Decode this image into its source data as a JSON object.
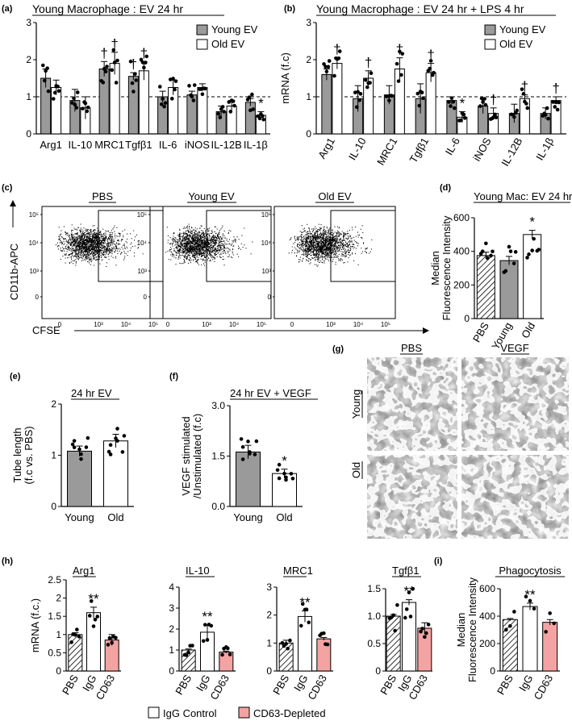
{
  "colors": {
    "young": "#9a9a9a",
    "old": "#ffffff",
    "cd63": "#f4a3a3",
    "igg": "#ffffff",
    "stroke": "#000000",
    "blot_bg": "#2b2b2b"
  },
  "panel_a": {
    "letter": "(a)",
    "title": "Young Macrophage : EV 24 hr",
    "legend": [
      "Young EV",
      "Old EV"
    ]
  },
  "panel_b": {
    "letter": "(b)",
    "title": "Young Macrophage : EV 24 hr + LPS 4 hr",
    "ylabel": "mRNA  (f.c)",
    "legend": [
      "Young EV",
      "Old EV"
    ]
  },
  "panel_c": {
    "letter": "(c)",
    "titles": [
      "PBS",
      "Young EV",
      "Old EV"
    ],
    "ylabel": "CD11b-APC",
    "xlabel": "CFSE",
    "yticks": [
      "10⁵",
      "10⁴",
      "10³",
      "0"
    ],
    "xticks": [
      "0",
      "10³",
      "10⁴",
      "10⁵"
    ]
  },
  "panel_d": {
    "letter": "(d)",
    "title": "Young Mac: EV 24 hr",
    "ylabel": "Median Fluorescence Intensity"
  },
  "panel_e": {
    "letter": "(e)",
    "title": "24 hr EV",
    "ylabel": "Tube length (f.c vs. PBS)"
  },
  "panel_f": {
    "letter": "(f)",
    "title": "24 hr EV + VEGF",
    "ylabel": "VEGF stimulated /Unstimulated (f.c)"
  },
  "panel_g": {
    "letter": "(g)",
    "col_labels": [
      "PBS",
      "VEGF"
    ],
    "row_labels": [
      "Young",
      "Old"
    ]
  },
  "panel_h": {
    "letter": "(h)",
    "ylabel": "mRNA (f.c.)"
  },
  "panel_i": {
    "letter": "(i)",
    "ylabel": "Median Fluorescence Intensity"
  },
  "legend_bottom": [
    "IgG Control",
    "CD63-Depleted"
  ],
  "chart_data": [
    {
      "id": "a",
      "type": "bar",
      "title": "Young Macrophage : EV 24 hr",
      "categories": [
        "Arg1",
        "IL-10",
        "MRC1",
        "Tgfβ1",
        "IL-6",
        "iNOS",
        "IL-12B",
        "IL-1β"
      ],
      "series": [
        {
          "name": "Young EV",
          "values": [
            1.5,
            0.9,
            1.75,
            1.55,
            1.0,
            1.05,
            0.6,
            0.85
          ]
        },
        {
          "name": "Old EV",
          "values": [
            1.25,
            0.7,
            1.9,
            1.7,
            1.25,
            1.25,
            0.75,
            0.5
          ]
        }
      ],
      "errors": [
        [
          0.25,
          0.3,
          0.2,
          0.1,
          0.15,
          0.1,
          0.15,
          0.1
        ],
        [
          0.2,
          0.3,
          0.3,
          0.25,
          0.2,
          0.1,
          0.15,
          0.1
        ]
      ],
      "annotations": [
        [
          "",
          "",
          "†",
          "†",
          "",
          "",
          "",
          ""
        ],
        [
          "",
          "",
          "†",
          "†",
          "",
          "",
          "",
          "*"
        ]
      ],
      "reference_line": 1,
      "ylim": [
        0,
        3
      ],
      "yticks": [
        0,
        1,
        2,
        3
      ]
    },
    {
      "id": "b",
      "type": "bar",
      "title": "Young Macrophage : EV 24 hr + LPS 4 hr",
      "ylabel": "mRNA  (f.c)",
      "categories": [
        "Arg1",
        "IL-10",
        "MRC1",
        "Tgfβ1",
        "IL-6",
        "iNOS",
        "IL-12B",
        "IL-1β"
      ],
      "series": [
        {
          "name": "Young EV",
          "values": [
            1.6,
            0.95,
            1.05,
            0.95,
            0.9,
            0.75,
            0.55,
            0.55
          ]
        },
        {
          "name": "Old EV",
          "values": [
            1.9,
            1.5,
            1.75,
            1.65,
            0.45,
            0.55,
            0.95,
            0.9
          ]
        }
      ],
      "errors": [
        [
          0.15,
          0.35,
          0.25,
          0.4,
          0.1,
          0.2,
          0.25,
          0.15
        ],
        [
          0.15,
          0.2,
          0.3,
          0.25,
          0.15,
          0.15,
          0.1,
          0.1
        ]
      ],
      "annotations": [
        [
          "",
          "",
          "",
          "",
          "",
          "",
          "",
          ""
        ],
        [
          "†",
          "†",
          "†",
          "†",
          "*",
          "†",
          "†",
          "†"
        ]
      ],
      "reference_line": 1,
      "ylim": [
        0,
        3
      ],
      "yticks": [
        0,
        1,
        2,
        3
      ]
    },
    {
      "id": "d",
      "type": "bar",
      "title": "Young Mac: EV 24 hr",
      "ylabel": "Median Fluorescence Intensity",
      "categories": [
        "PBS",
        "Young",
        "Old"
      ],
      "values": [
        375,
        345,
        500
      ],
      "errors": [
        20,
        25,
        25
      ],
      "annotations": [
        "",
        "",
        "*"
      ],
      "fills": [
        "hatch",
        "#9a9a9a",
        "#ffffff"
      ],
      "ylim": [
        0,
        600
      ],
      "yticks": [
        0,
        200,
        400,
        600
      ]
    },
    {
      "id": "e",
      "type": "bar",
      "title": "24 hr EV",
      "ylabel": "Tube length (f.c vs. PBS)",
      "categories": [
        "Young",
        "Old"
      ],
      "values": [
        1.08,
        1.28
      ],
      "errors": [
        0.1,
        0.13
      ],
      "annotations": [
        "",
        ""
      ],
      "fills": [
        "#9a9a9a",
        "#ffffff"
      ],
      "ylim": [
        0,
        2
      ],
      "yticks": [
        0,
        1,
        2
      ]
    },
    {
      "id": "f",
      "type": "bar",
      "title": "24 hr EV + VEGF",
      "ylabel": "VEGF stimulated /Unstimulated (f.c)",
      "categories": [
        "Young",
        "Old"
      ],
      "values": [
        1.62,
        0.98
      ],
      "errors": [
        0.2,
        0.13
      ],
      "annotations": [
        "",
        "*"
      ],
      "fills": [
        "#9a9a9a",
        "#ffffff"
      ],
      "ylim": [
        0,
        3
      ],
      "yticks": [
        0.0,
        1.5,
        3.0
      ],
      "yticklabels": [
        "0.0",
        "1.5",
        "3.0"
      ]
    },
    {
      "id": "h1",
      "type": "bar",
      "title": "Arg1",
      "ylabel": "mRNA (f.c.)",
      "categories": [
        "PBS",
        "IgG",
        "CD63"
      ],
      "values": [
        1.0,
        1.6,
        0.85
      ],
      "errors": [
        0.05,
        0.15,
        0.15
      ],
      "annotations": [
        "",
        "**",
        ""
      ],
      "fills": [
        "hatch",
        "#ffffff",
        "#f4a3a3"
      ],
      "ylim": [
        0,
        2.5
      ],
      "yticks": [
        0,
        0.5,
        1.0,
        1.5,
        2.0,
        2.5
      ],
      "yticklabels": [
        "0",
        "0.5",
        "1",
        "1.5",
        "2",
        "2.5"
      ]
    },
    {
      "id": "h2",
      "type": "bar",
      "title": "IL-10",
      "categories": [
        "PBS",
        "IgG",
        "CD63"
      ],
      "values": [
        1.0,
        1.85,
        0.9
      ],
      "errors": [
        0.05,
        0.35,
        0.05
      ],
      "annotations": [
        "",
        "**",
        ""
      ],
      "fills": [
        "hatch",
        "#ffffff",
        "#f4a3a3"
      ],
      "ylim": [
        0,
        4
      ],
      "yticks": [
        0,
        1,
        2,
        3,
        4
      ]
    },
    {
      "id": "h3",
      "type": "bar",
      "title": "MRC1",
      "categories": [
        "PBS",
        "IgG",
        "CD63"
      ],
      "values": [
        1.0,
        1.95,
        1.15
      ],
      "errors": [
        0.1,
        0.2,
        0.05
      ],
      "annotations": [
        "",
        "**",
        ""
      ],
      "fills": [
        "hatch",
        "#ffffff",
        "#f4a3a3"
      ],
      "ylim": [
        0,
        3
      ],
      "yticks": [
        0,
        1,
        2,
        3
      ]
    },
    {
      "id": "h4",
      "type": "bar",
      "title": "Tgfβ1",
      "categories": [
        "PBS",
        "IgG",
        "CD63"
      ],
      "values": [
        1.0,
        1.25,
        0.78
      ],
      "errors": [
        0.03,
        0.05,
        0.1
      ],
      "annotations": [
        "",
        "**",
        ""
      ],
      "fills": [
        "hatch",
        "#ffffff",
        "#f4a3a3"
      ],
      "ylim": [
        0,
        1.5
      ],
      "yticks": [
        0,
        0.5,
        1.0,
        1.5
      ],
      "yticklabels": [
        "0",
        "0.5",
        "1.0",
        "1.5"
      ]
    },
    {
      "id": "i",
      "type": "bar",
      "title": "Phagocytosis",
      "ylabel": "Median Fluorescence Intensity",
      "categories": [
        "PBS",
        "IgG",
        "CD63"
      ],
      "values": [
        375,
        470,
        355
      ],
      "errors": [
        8,
        25,
        20
      ],
      "annotations": [
        "",
        "**",
        ""
      ],
      "fills": [
        "hatch",
        "#ffffff",
        "#f4a3a3"
      ],
      "ylim": [
        0,
        600
      ],
      "yticks": [
        0,
        200,
        400,
        600
      ]
    }
  ]
}
